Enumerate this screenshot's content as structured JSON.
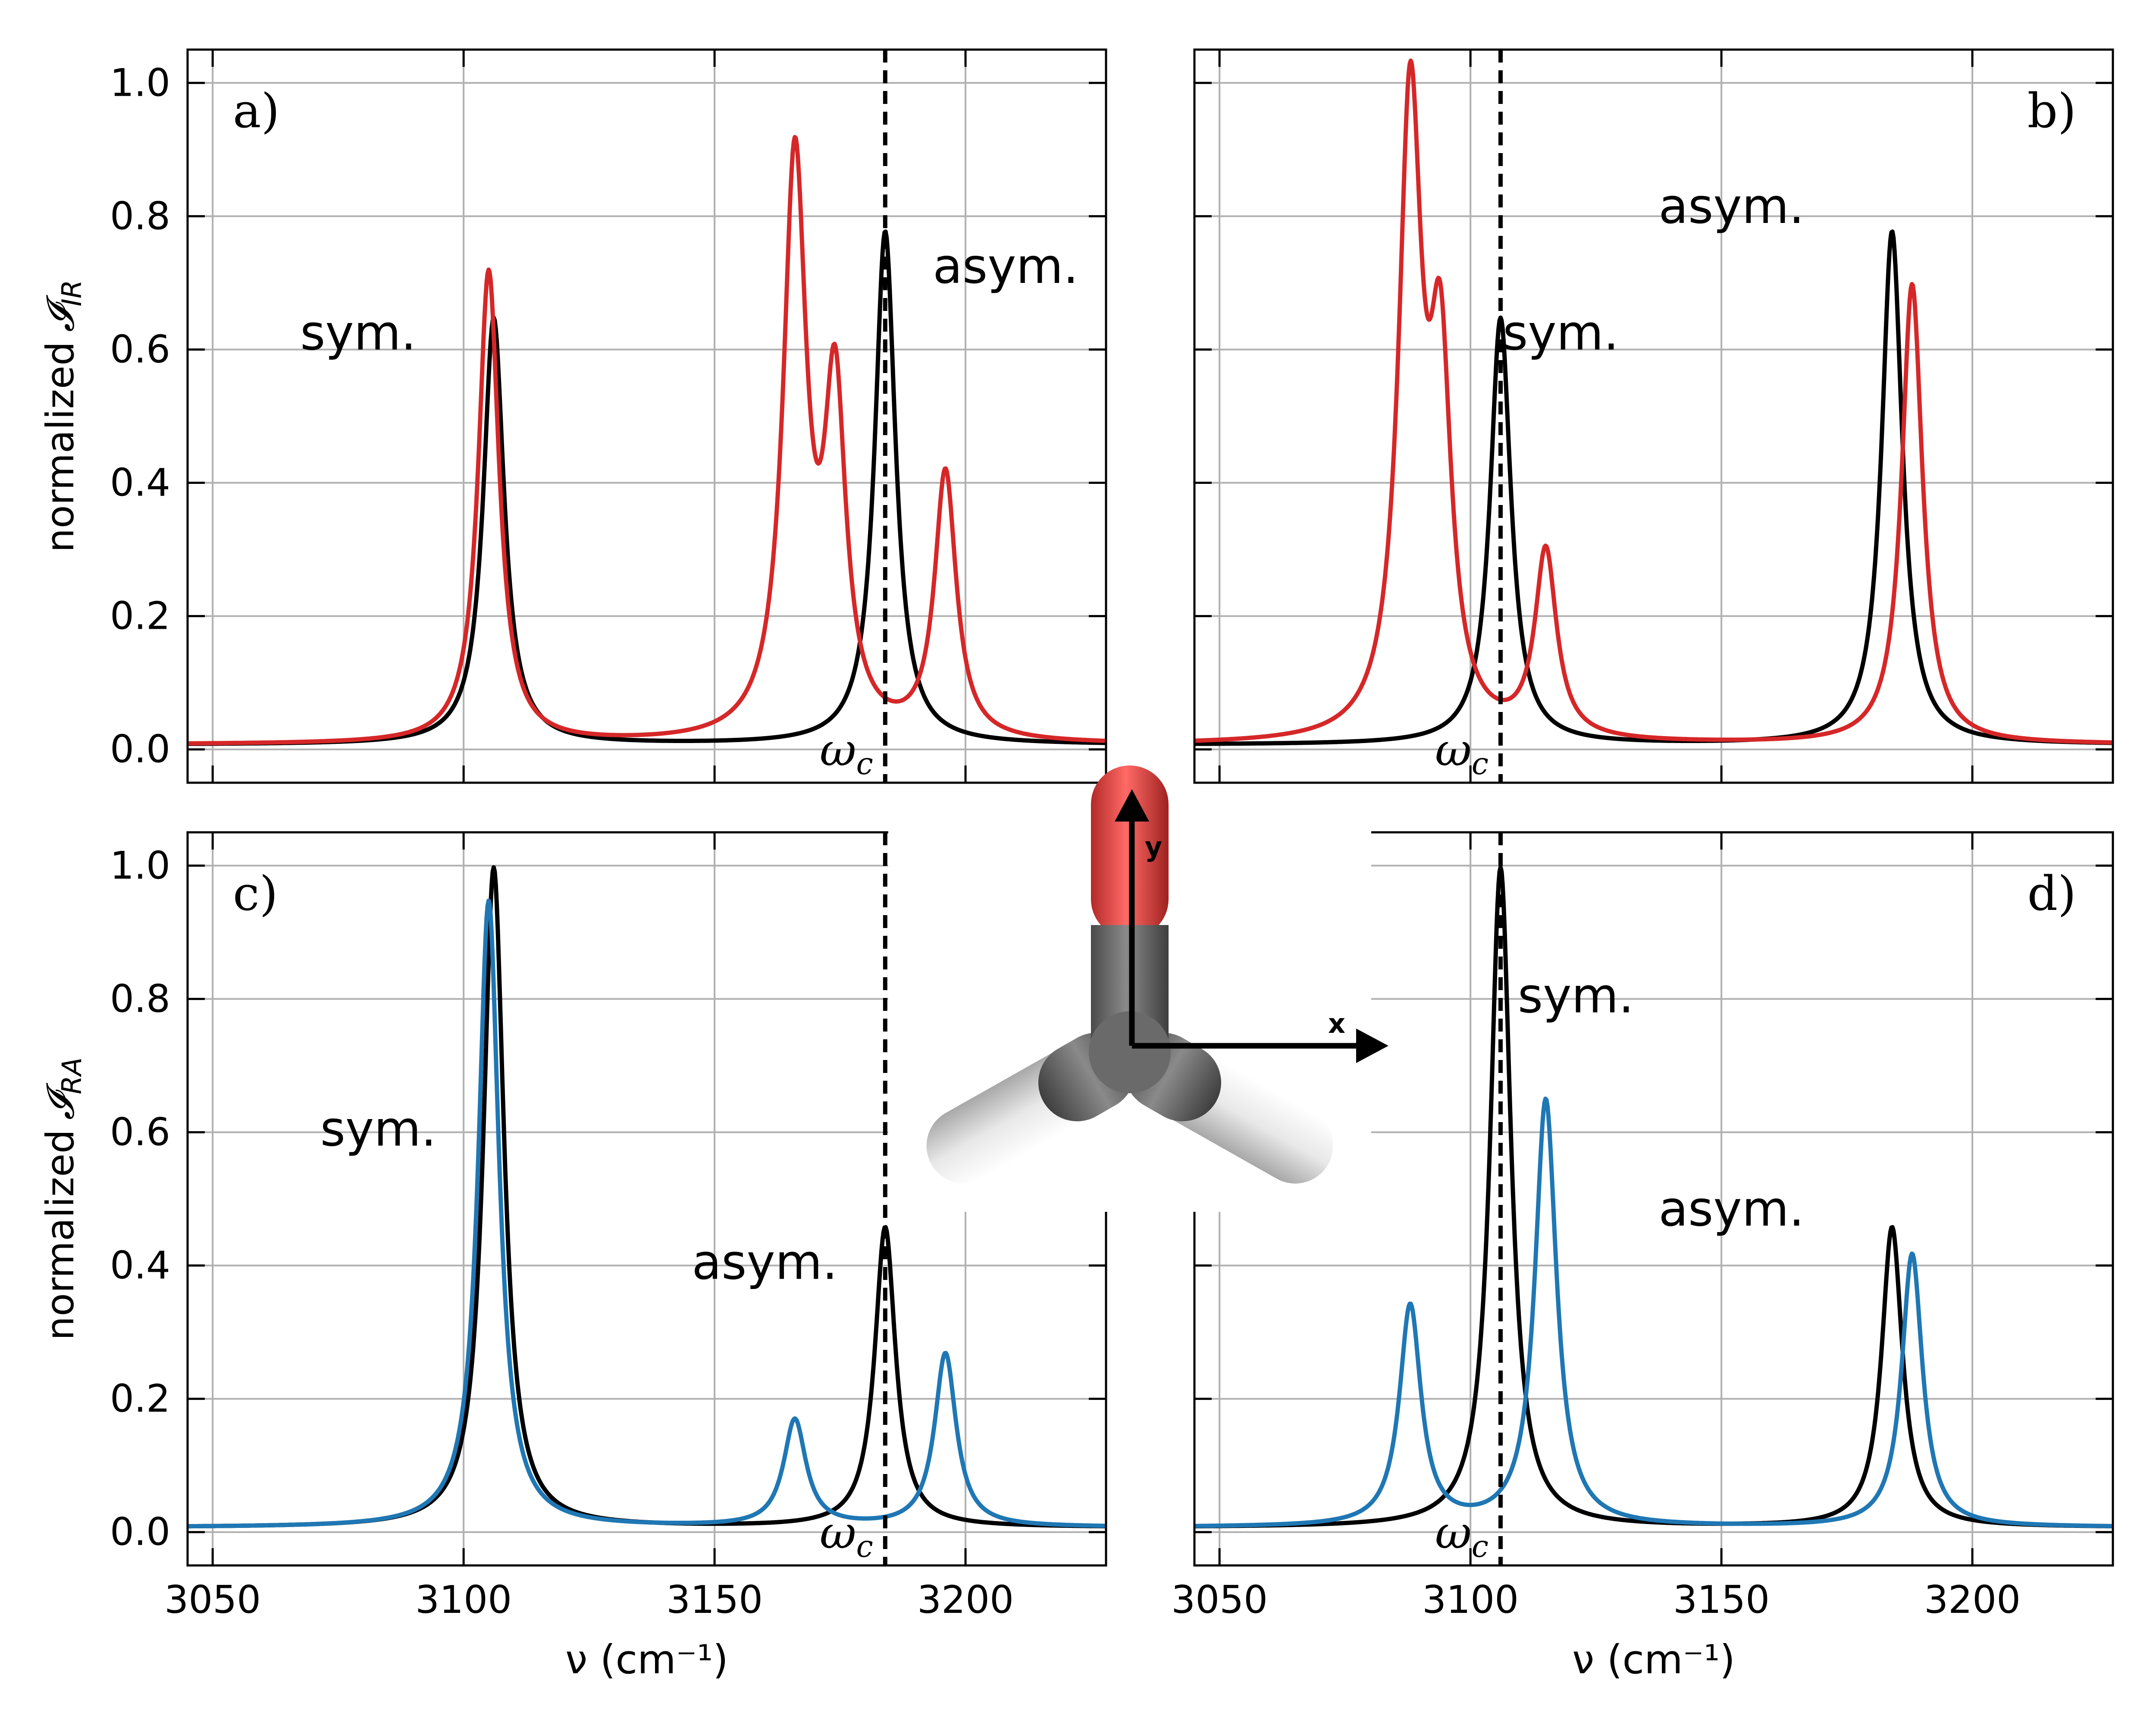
{
  "figure": {
    "y_axis_label_prefix": "normalized",
    "x_axis_label": "ν (cm⁻¹)",
    "omega_label": "ω",
    "omega_subscript": "c",
    "colors": {
      "cavity_free": "#000000",
      "ir_cavity": "#d62728",
      "raman_cavity": "#1f77b4",
      "grid": "#b0b0b0"
    },
    "molecule": {
      "axis_x_label": "x",
      "axis_y_label": "y",
      "atom_colors": {
        "oxygen": "#e8413f",
        "carbon": "#6e6e6e",
        "hydrogen": "#f2f2f2"
      }
    }
  },
  "chart_data": [
    {
      "panel": "a)",
      "type": "line",
      "ylabel_symbol": "𝓘",
      "ylabel_subscript": "IR",
      "xlim": [
        3045,
        3228
      ],
      "ylim": [
        -0.05,
        1.05
      ],
      "xticks": [
        3050,
        3100,
        3150,
        3200
      ],
      "yticks": [
        0.0,
        0.2,
        0.4,
        0.6,
        0.8,
        1.0
      ],
      "show_x_ticklabels": false,
      "show_y_ticklabels": true,
      "cavity_frequency": 3184,
      "grid": true,
      "annotations": [
        {
          "text": "sym.",
          "x": 3079,
          "y": 0.6
        },
        {
          "text": "asym.",
          "x": 3208,
          "y": 0.7
        }
      ],
      "series": [
        {
          "color": "#000000",
          "baseline": 0.007,
          "peaks": [
            {
              "center": 3106,
              "amp": 0.64,
              "hwhm": 2.5
            },
            {
              "center": 3184,
              "amp": 0.77,
              "hwhm": 2.5
            }
          ]
        },
        {
          "color": "#d62728",
          "baseline": 0.007,
          "peaks": [
            {
              "center": 3105,
              "amp": 0.71,
              "hwhm": 2.5
            },
            {
              "center": 3166,
              "amp": 0.86,
              "hwhm": 2.8
            },
            {
              "center": 3174,
              "amp": 0.5,
              "hwhm": 2.6
            },
            {
              "center": 3196,
              "amp": 0.4,
              "hwhm": 2.6
            }
          ]
        }
      ]
    },
    {
      "panel": "b)",
      "type": "line",
      "xlim": [
        3045,
        3228
      ],
      "ylim": [
        -0.05,
        1.05
      ],
      "xticks": [
        3050,
        3100,
        3150,
        3200
      ],
      "yticks": [
        0.0,
        0.2,
        0.4,
        0.6,
        0.8,
        1.0
      ],
      "show_x_ticklabels": false,
      "show_y_ticklabels": false,
      "cavity_frequency": 3106,
      "grid": true,
      "annotations": [
        {
          "text": "sym.",
          "x": 3118,
          "y": 0.6
        },
        {
          "text": "asym.",
          "x": 3152,
          "y": 0.79
        }
      ],
      "series": [
        {
          "color": "#000000",
          "baseline": 0.007,
          "peaks": [
            {
              "center": 3106,
              "amp": 0.64,
              "hwhm": 2.5
            },
            {
              "center": 3184,
              "amp": 0.77,
              "hwhm": 2.5
            }
          ]
        },
        {
          "color": "#d62728",
          "baseline": 0.007,
          "peaks": [
            {
              "center": 3088,
              "amp": 0.94,
              "hwhm": 2.8
            },
            {
              "center": 3094,
              "amp": 0.52,
              "hwhm": 2.6
            },
            {
              "center": 3115,
              "amp": 0.28,
              "hwhm": 2.6
            },
            {
              "center": 3188,
              "amp": 0.69,
              "hwhm": 2.5
            }
          ]
        }
      ]
    },
    {
      "panel": "c)",
      "type": "line",
      "ylabel_symbol": "𝓘",
      "ylabel_subscript": "RA",
      "xlim": [
        3045,
        3228
      ],
      "ylim": [
        -0.05,
        1.05
      ],
      "xticks": [
        3050,
        3100,
        3150,
        3200
      ],
      "yticks": [
        0.0,
        0.2,
        0.4,
        0.6,
        0.8,
        1.0
      ],
      "show_x_ticklabels": true,
      "show_y_ticklabels": true,
      "cavity_frequency": 3184,
      "grid": true,
      "annotations": [
        {
          "text": "sym.",
          "x": 3083,
          "y": 0.58
        },
        {
          "text": "asym.",
          "x": 3160,
          "y": 0.38
        }
      ],
      "series": [
        {
          "color": "#000000",
          "baseline": 0.007,
          "peaks": [
            {
              "center": 3106,
              "amp": 0.99,
              "hwhm": 2.5
            },
            {
              "center": 3184,
              "amp": 0.45,
              "hwhm": 2.5
            }
          ]
        },
        {
          "color": "#1f77b4",
          "baseline": 0.007,
          "peaks": [
            {
              "center": 3105,
              "amp": 0.94,
              "hwhm": 2.5
            },
            {
              "center": 3166,
              "amp": 0.16,
              "hwhm": 2.7
            },
            {
              "center": 3196,
              "amp": 0.26,
              "hwhm": 2.6
            }
          ]
        }
      ]
    },
    {
      "panel": "d)",
      "type": "line",
      "xlim": [
        3045,
        3228
      ],
      "ylim": [
        -0.05,
        1.05
      ],
      "xticks": [
        3050,
        3100,
        3150,
        3200
      ],
      "yticks": [
        0.0,
        0.2,
        0.4,
        0.6,
        0.8,
        1.0
      ],
      "show_x_ticklabels": true,
      "show_y_ticklabels": false,
      "cavity_frequency": 3106,
      "grid": true,
      "annotations": [
        {
          "text": "sym.",
          "x": 3121,
          "y": 0.78
        },
        {
          "text": "asym.",
          "x": 3152,
          "y": 0.46
        }
      ],
      "series": [
        {
          "color": "#000000",
          "baseline": 0.007,
          "peaks": [
            {
              "center": 3106,
              "amp": 0.99,
              "hwhm": 2.5
            },
            {
              "center": 3184,
              "amp": 0.45,
              "hwhm": 2.5
            }
          ]
        },
        {
          "color": "#1f77b4",
          "baseline": 0.007,
          "peaks": [
            {
              "center": 3088,
              "amp": 0.33,
              "hwhm": 2.6
            },
            {
              "center": 3115,
              "amp": 0.64,
              "hwhm": 2.6
            },
            {
              "center": 3188,
              "amp": 0.41,
              "hwhm": 2.5
            }
          ]
        }
      ]
    }
  ]
}
